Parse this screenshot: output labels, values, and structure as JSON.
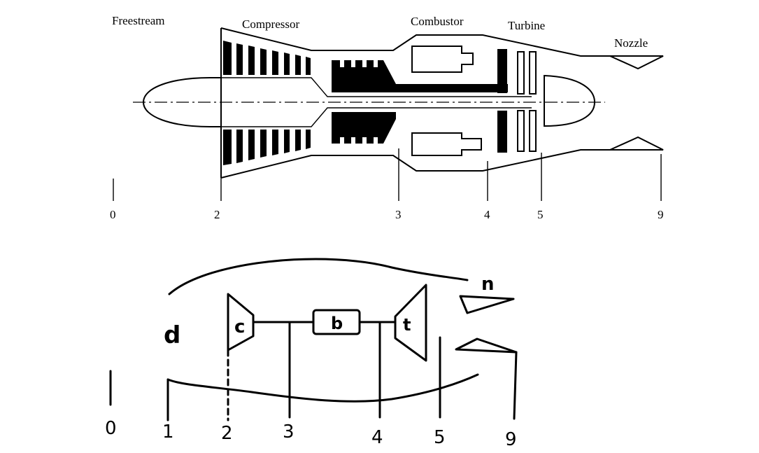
{
  "top_diagram": {
    "section_labels": {
      "freestream": "Freestream",
      "compressor": "Compressor",
      "combustor": "Combustor",
      "turbine": "Turbine",
      "nozzle": "Nozzle"
    },
    "station_numbers": [
      "0",
      "2",
      "3",
      "4",
      "5",
      "9"
    ]
  },
  "bottom_diagram": {
    "component_labels": {
      "diffuser": "d",
      "compressor": "c",
      "burner": "b",
      "turbine": "t",
      "nozzle": "n"
    },
    "station_numbers": [
      "0",
      "1",
      "2",
      "3",
      "4",
      "5",
      "9"
    ]
  }
}
